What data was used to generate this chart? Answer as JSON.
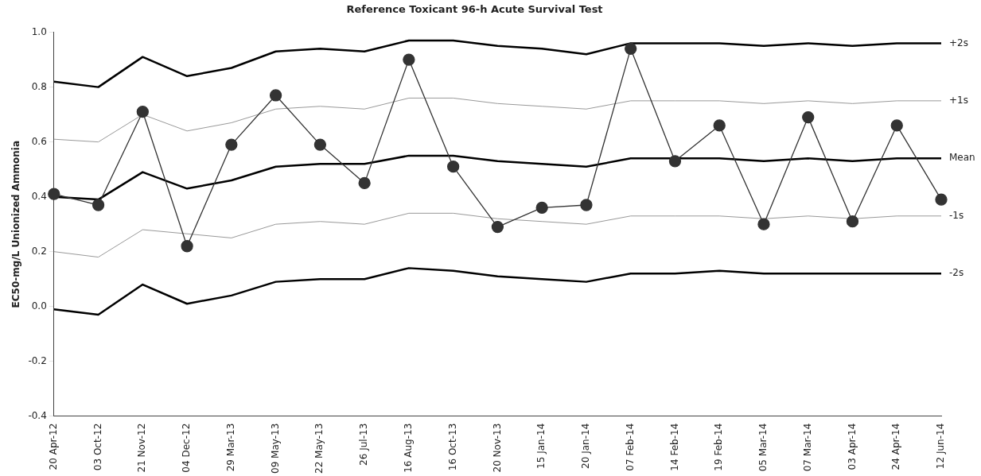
{
  "chart_data": {
    "type": "line",
    "title": "Reference Toxicant 96-h Acute Survival Test",
    "ylabel": "EC50-mg/L Unionized Ammonia",
    "categories": [
      "20 Apr-12",
      "03 Oct-12",
      "21 Nov-12",
      "04 Dec-12",
      "29 Mar-13",
      "09 May-13",
      "22 May-13",
      "26 Jul-13",
      "16 Aug-13",
      "16 Oct-13",
      "20 Nov-13",
      "15 Jan-14",
      "20 Jan-14",
      "07 Feb-14",
      "14 Feb-14",
      "19 Feb-14",
      "05 Mar-14",
      "07 Mar-14",
      "03 Apr-14",
      "24 Apr-14",
      "12 Jun-14"
    ],
    "series": [
      {
        "color": "#333333",
        "marker": "circle",
        "values": [
          0.41,
          0.37,
          0.71,
          0.22,
          0.59,
          0.77,
          0.59,
          0.45,
          0.9,
          0.51,
          0.29,
          0.36,
          0.37,
          0.94,
          0.53,
          0.66,
          0.3,
          0.69,
          0.31,
          0.66,
          0.39
        ]
      },
      {
        "name": "+2s",
        "color": "#000000",
        "values": [
          0.82,
          0.8,
          0.91,
          0.84,
          0.87,
          0.93,
          0.94,
          0.93,
          0.97,
          0.97,
          0.95,
          0.94,
          0.92,
          0.96,
          0.96,
          0.96,
          0.95,
          0.96,
          0.95,
          0.96,
          0.96
        ]
      },
      {
        "name": "+1s",
        "color": "#999999",
        "values": [
          0.61,
          0.6,
          0.7,
          0.64,
          0.67,
          0.72,
          0.73,
          0.72,
          0.76,
          0.76,
          0.74,
          0.73,
          0.72,
          0.75,
          0.75,
          0.75,
          0.74,
          0.75,
          0.74,
          0.75,
          0.75
        ]
      },
      {
        "name": "Mean",
        "color": "#000000",
        "values": [
          0.4,
          0.39,
          0.49,
          0.43,
          0.46,
          0.51,
          0.52,
          0.52,
          0.55,
          0.55,
          0.53,
          0.52,
          0.51,
          0.54,
          0.54,
          0.54,
          0.53,
          0.54,
          0.53,
          0.54,
          0.54
        ]
      },
      {
        "name": "-1s",
        "color": "#999999",
        "values": [
          0.2,
          0.18,
          0.28,
          null,
          0.25,
          0.3,
          0.31,
          0.3,
          0.34,
          0.34,
          0.32,
          0.31,
          0.3,
          0.33,
          0.33,
          0.33,
          0.32,
          0.33,
          0.32,
          0.33,
          0.33
        ]
      },
      {
        "name": "-2s",
        "color": "#000000",
        "values": [
          -0.01,
          -0.03,
          0.08,
          0.01,
          0.04,
          0.09,
          0.1,
          0.1,
          0.14,
          0.13,
          0.11,
          0.1,
          0.09,
          0.12,
          0.12,
          0.13,
          0.12,
          0.12,
          0.12,
          0.12,
          0.12
        ]
      }
    ],
    "ylim": [
      -0.4,
      1.0
    ],
    "yticks": [
      {
        "value": -0.4,
        "label": "-0.4"
      },
      {
        "value": -0.2,
        "label": "-0.2"
      },
      {
        "value": 0,
        "label": "0.0"
      },
      {
        "value": 0.2,
        "label": "0.2"
      },
      {
        "value": 0.4,
        "label": "0.4"
      },
      {
        "value": 0.6,
        "label": "0.6"
      },
      {
        "value": 0.8,
        "label": "0.8"
      },
      {
        "value": 1,
        "label": "1.0"
      }
    ],
    "grid": false,
    "legend": false,
    "line_style": "solid"
  }
}
